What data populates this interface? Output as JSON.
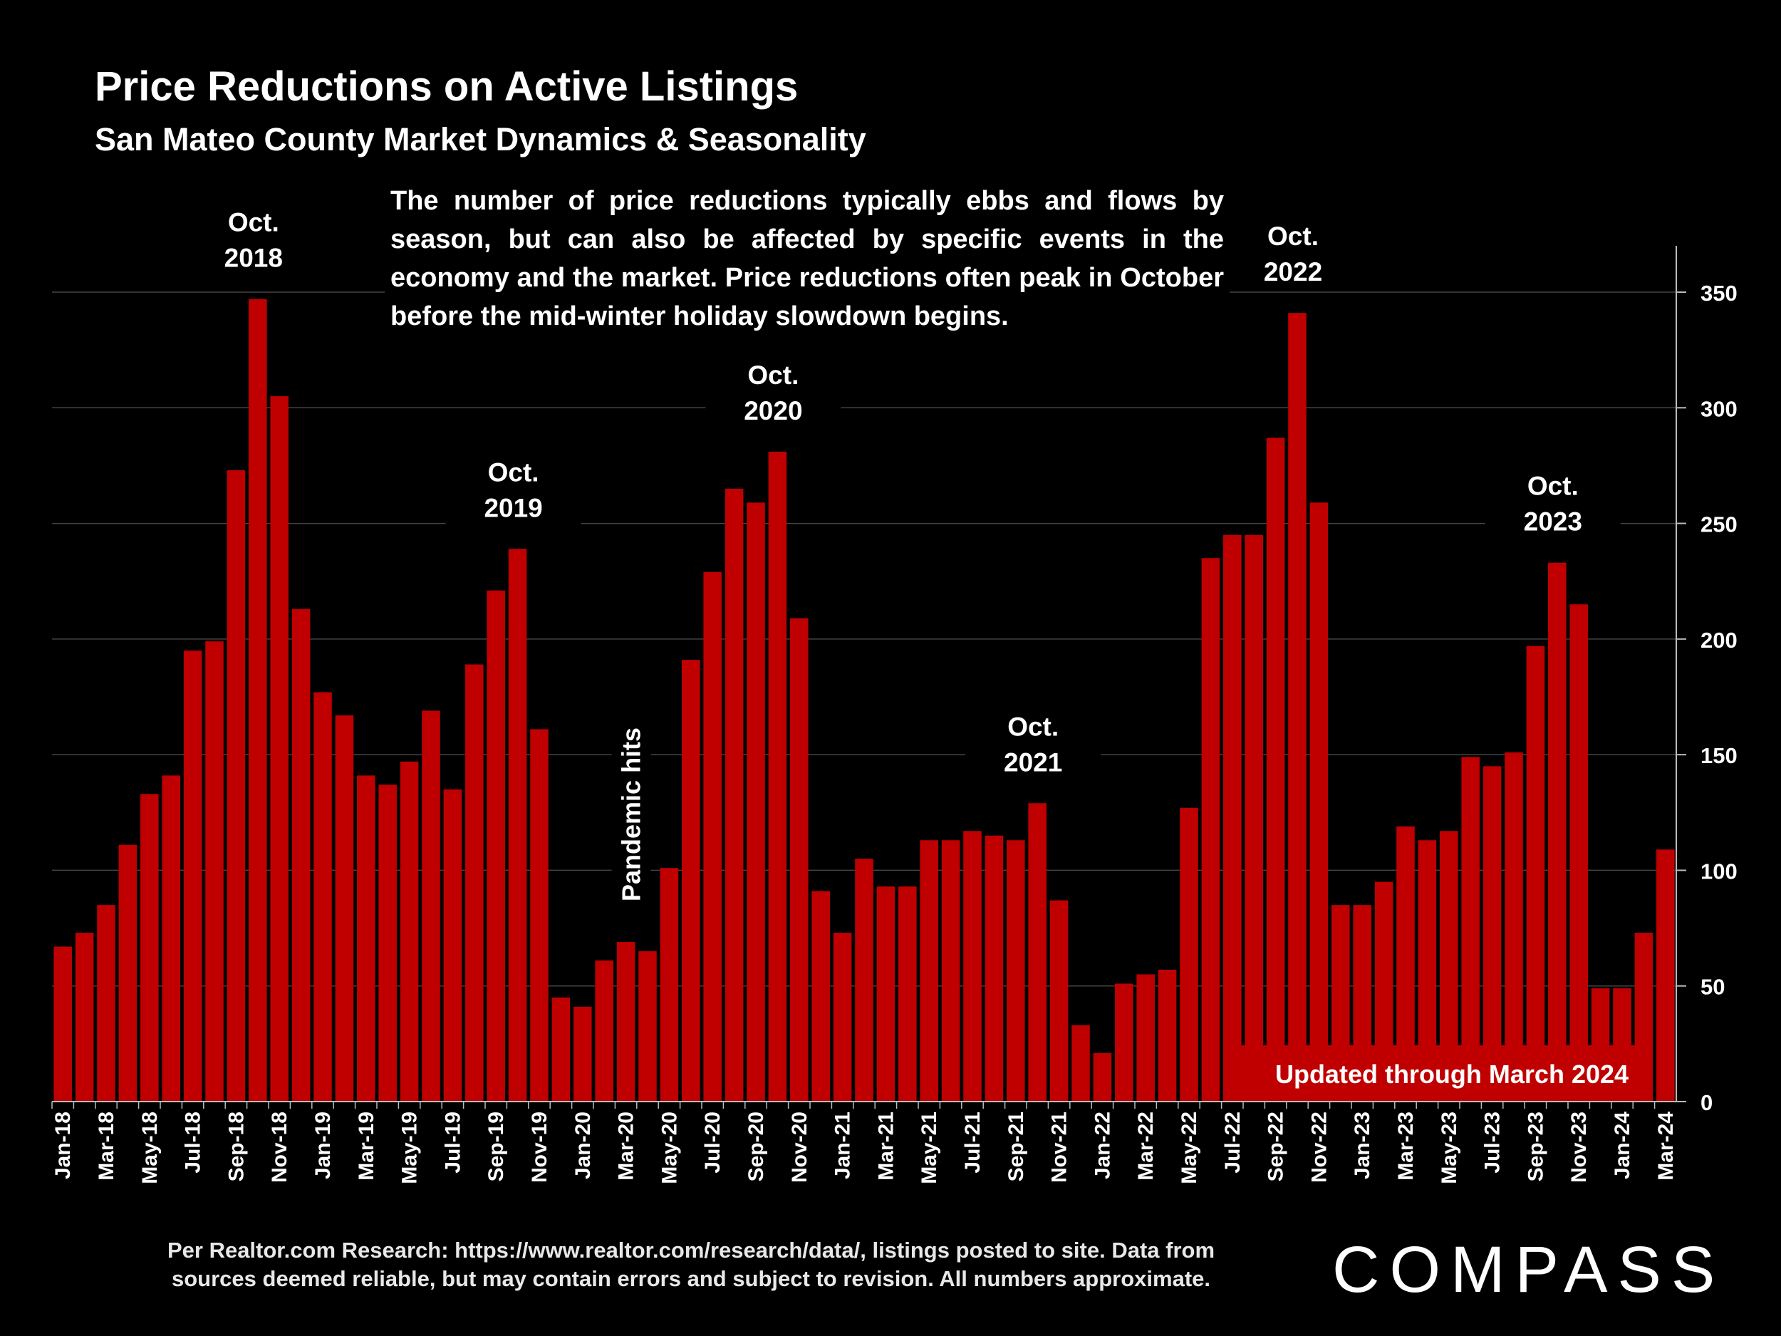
{
  "title": "Price Reductions on Active Listings",
  "subtitle": "San Mateo County Market Dynamics & Seasonality",
  "description": "The number of price reductions typically ebbs and flows by season, but can also be affected by specific events in the economy and the market. Price reductions often peak in October before the mid-winter holiday slowdown begins.",
  "footnote_line1": "Per Realtor.com Research:  https://www.realtor.com/research/data/, listings posted to site. Data from",
  "footnote_line2": "sources deemed reliable, but may contain errors and subject to revision. All numbers approximate.",
  "logo": "COMPASS",
  "colors": {
    "bar": "#c00000",
    "background": "#000000",
    "text": "#ffffff",
    "grid": "#444444"
  },
  "chart_data": {
    "type": "bar",
    "ylim": [
      0,
      350
    ],
    "yticks": [
      0,
      50,
      100,
      150,
      200,
      250,
      300,
      350
    ],
    "y_axis_position": "right",
    "grid": true,
    "categories": [
      "Jan-18",
      "Feb-18",
      "Mar-18",
      "Apr-18",
      "May-18",
      "Jun-18",
      "Jul-18",
      "Aug-18",
      "Sep-18",
      "Oct-18",
      "Nov-18",
      "Dec-18",
      "Jan-19",
      "Feb-19",
      "Mar-19",
      "Apr-19",
      "May-19",
      "Jun-19",
      "Jul-19",
      "Aug-19",
      "Sep-19",
      "Oct-19",
      "Nov-19",
      "Dec-19",
      "Jan-20",
      "Feb-20",
      "Mar-20",
      "Apr-20",
      "May-20",
      "Jun-20",
      "Jul-20",
      "Aug-20",
      "Sep-20",
      "Oct-20",
      "Nov-20",
      "Dec-20",
      "Jan-21",
      "Feb-21",
      "Mar-21",
      "Apr-21",
      "May-21",
      "Jun-21",
      "Jul-21",
      "Aug-21",
      "Sep-21",
      "Oct-21",
      "Nov-21",
      "Dec-21",
      "Jan-22",
      "Feb-22",
      "Mar-22",
      "Apr-22",
      "May-22",
      "Jun-22",
      "Jul-22",
      "Aug-22",
      "Sep-22",
      "Oct-22",
      "Nov-22",
      "Dec-22",
      "Jan-23",
      "Feb-23",
      "Mar-23",
      "Apr-23",
      "May-23",
      "Jun-23",
      "Jul-23",
      "Aug-23",
      "Sep-23",
      "Oct-23",
      "Nov-23",
      "Dec-23",
      "Jan-24",
      "Feb-24",
      "Mar-24"
    ],
    "values": [
      67,
      73,
      85,
      111,
      133,
      141,
      195,
      199,
      273,
      347,
      305,
      213,
      177,
      167,
      141,
      137,
      147,
      169,
      135,
      189,
      221,
      239,
      161,
      45,
      41,
      61,
      69,
      65,
      101,
      191,
      229,
      265,
      259,
      281,
      209,
      91,
      73,
      105,
      93,
      93,
      113,
      113,
      117,
      115,
      113,
      129,
      87,
      33,
      21,
      51,
      55,
      57,
      127,
      235,
      245,
      245,
      287,
      341,
      259,
      85,
      85,
      95,
      119,
      113,
      117,
      149,
      145,
      151,
      197,
      233,
      215,
      49,
      49,
      73,
      109
    ],
    "annotations": [
      {
        "index": 9,
        "line1": "Oct.",
        "line2": "2018"
      },
      {
        "index": 21,
        "line1": "Oct.",
        "line2": "2019"
      },
      {
        "index": 33,
        "line1": "Oct.",
        "line2": "2020"
      },
      {
        "index": 45,
        "line1": "Oct.",
        "line2": "2021"
      },
      {
        "index": 57,
        "line1": "Oct.",
        "line2": "2022"
      },
      {
        "index": 69,
        "line1": "Oct.",
        "line2": "2023"
      }
    ],
    "event_annotation": {
      "index": 26,
      "text": "Pandemic hits"
    },
    "updated_label": "Updated through March 2024"
  }
}
